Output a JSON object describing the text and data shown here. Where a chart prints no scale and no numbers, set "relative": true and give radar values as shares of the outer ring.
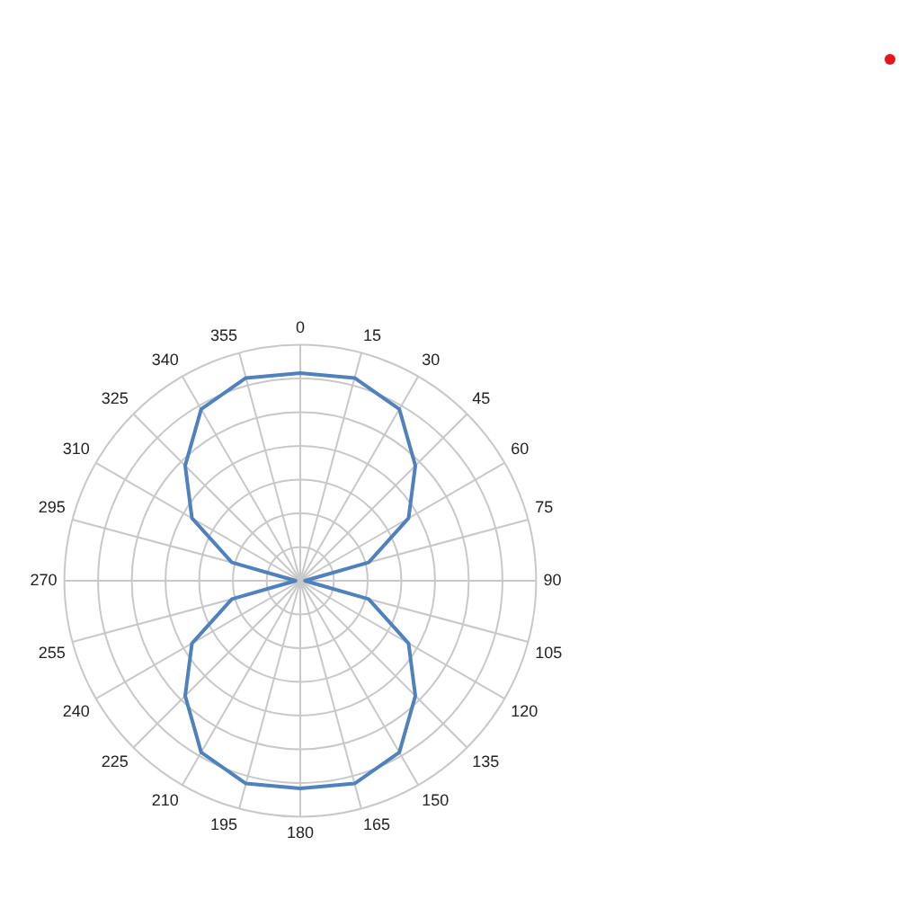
{
  "chart_data": {
    "type": "radar",
    "relative": true,
    "grid": true,
    "legend": false,
    "marker": "none",
    "categories": [
      "0",
      "15",
      "30",
      "45",
      "60",
      "75",
      "90",
      "105",
      "120",
      "135",
      "150",
      "165",
      "180",
      "195",
      "210",
      "225",
      "240",
      "255",
      "270",
      "295",
      "310",
      "325",
      "340",
      "355"
    ],
    "series": [
      {
        "color": "#4f81bd",
        "values": [
          0.88,
          0.89,
          0.84,
          0.69,
          0.53,
          0.3,
          0.02,
          0.3,
          0.53,
          0.69,
          0.84,
          0.89,
          0.88,
          0.89,
          0.84,
          0.69,
          0.53,
          0.3,
          0.02,
          0.3,
          0.53,
          0.69,
          0.84,
          0.89
        ]
      }
    ]
  }
}
